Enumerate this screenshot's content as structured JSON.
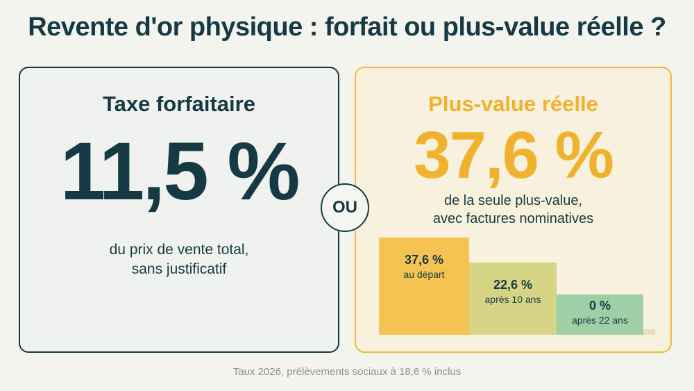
{
  "title": "Revente d'or physique : forfait ou plus-value réelle ?",
  "left": {
    "heading": "Taxe forfaitaire",
    "rate": "11,5 %",
    "caption_line1": "du prix de vente total,",
    "caption_line2": "sans justificatif"
  },
  "separator": "OU",
  "right": {
    "heading": "Plus-value réelle",
    "rate": "37,6 %",
    "caption_line1": "de la seule plus-value,",
    "caption_line2": "avec factures nominatives",
    "steps": [
      {
        "value": "37,6 %",
        "label": "au départ"
      },
      {
        "value": "22,6 %",
        "label": "après 10 ans"
      },
      {
        "value": "0 %",
        "label": "après 22 ans"
      }
    ]
  },
  "footnote": "Taux 2026, prélèvements sociaux à 18,6 % inclus",
  "colors": {
    "navy": "#163a44",
    "accent_yellow": "#f0b22e",
    "step_yellow": "#f5c352",
    "step_olive": "#d6d585",
    "step_green": "#9fcfa4"
  }
}
